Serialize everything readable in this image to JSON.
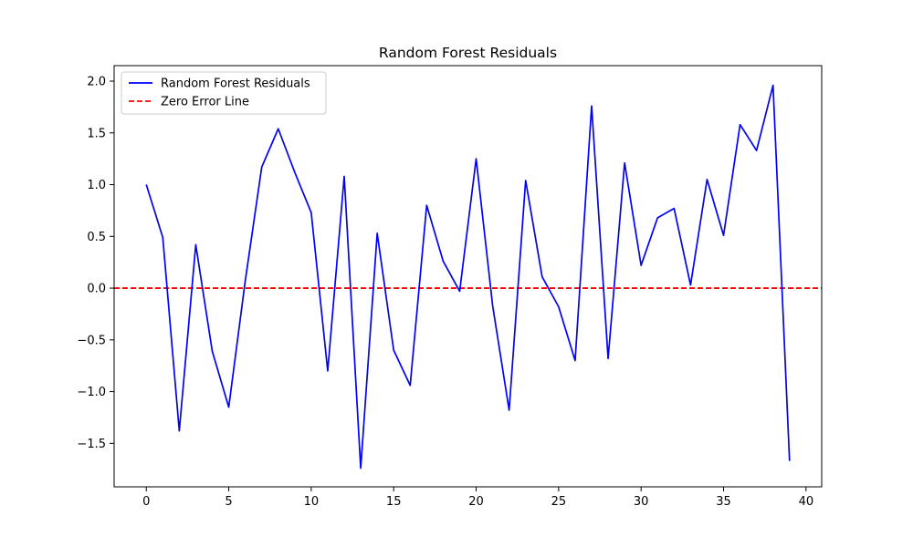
{
  "chart_data": {
    "type": "line",
    "title": "Random Forest Residuals",
    "xlabel": "",
    "ylabel": "",
    "xlim": [
      -1.95,
      40.95
    ],
    "ylim": [
      -1.92,
      2.15
    ],
    "xticks": [
      0,
      5,
      10,
      15,
      20,
      25,
      30,
      35,
      40
    ],
    "yticks": [
      -1.5,
      -1.0,
      -0.5,
      0.0,
      0.5,
      1.0,
      1.5,
      2.0
    ],
    "xtick_labels": [
      "0",
      "5",
      "10",
      "15",
      "20",
      "25",
      "30",
      "35",
      "40"
    ],
    "ytick_labels": [
      "−1.5",
      "−1.0",
      "−0.5",
      "0.0",
      "0.5",
      "1.0",
      "1.5",
      "2.0"
    ],
    "grid": false,
    "legend_position": "top-left",
    "series": [
      {
        "name": "Random Forest Residuals",
        "color": "#0000ff",
        "style": "solid",
        "x": [
          0,
          1,
          2,
          3,
          4,
          5,
          6,
          7,
          8,
          9,
          10,
          11,
          12,
          13,
          14,
          15,
          16,
          17,
          18,
          19,
          20,
          21,
          22,
          23,
          24,
          25,
          26,
          27,
          28,
          29,
          30,
          31,
          32,
          33,
          34,
          35,
          36,
          37,
          38,
          39
        ],
        "y": [
          1.0,
          0.49,
          -1.38,
          0.42,
          -0.61,
          -1.15,
          0.07,
          1.17,
          1.54,
          1.12,
          0.73,
          -0.8,
          1.08,
          -1.74,
          0.53,
          -0.6,
          -0.94,
          0.8,
          0.26,
          -0.03,
          1.25,
          -0.17,
          -1.18,
          1.04,
          0.11,
          -0.18,
          -0.7,
          1.76,
          -0.68,
          1.21,
          0.22,
          0.68,
          0.77,
          0.03,
          1.05,
          0.51,
          1.58,
          1.33,
          1.96,
          -1.67
        ]
      }
    ],
    "reference_lines": [
      {
        "name": "Zero Error Line",
        "y": 0.0,
        "color": "#ff0000",
        "style": "dashed"
      }
    ]
  }
}
